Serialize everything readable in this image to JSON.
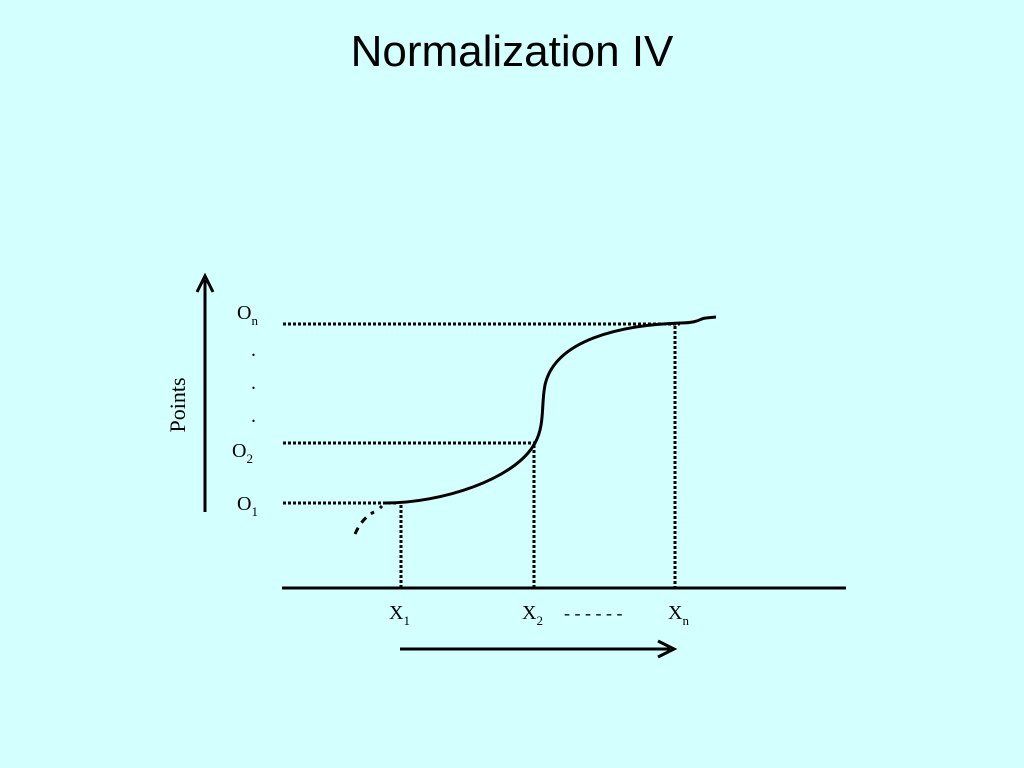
{
  "slide": {
    "title": "Normalization IV",
    "background": "#d4ffff"
  },
  "diagram": {
    "y_axis_label": "Points",
    "y_labels": [
      {
        "base": "O",
        "sub": "n"
      },
      {
        "base": "O",
        "sub": "2"
      },
      {
        "base": "O",
        "sub": "1"
      }
    ],
    "y_ellipsis": [
      ".",
      ".",
      "."
    ],
    "x_labels": [
      {
        "base": "X",
        "sub": "1"
      },
      {
        "base": "X",
        "sub": "2"
      },
      {
        "base": "X",
        "sub": "n"
      }
    ],
    "x_ellipsis": "- - - - - -",
    "curve_color": "#000000"
  }
}
